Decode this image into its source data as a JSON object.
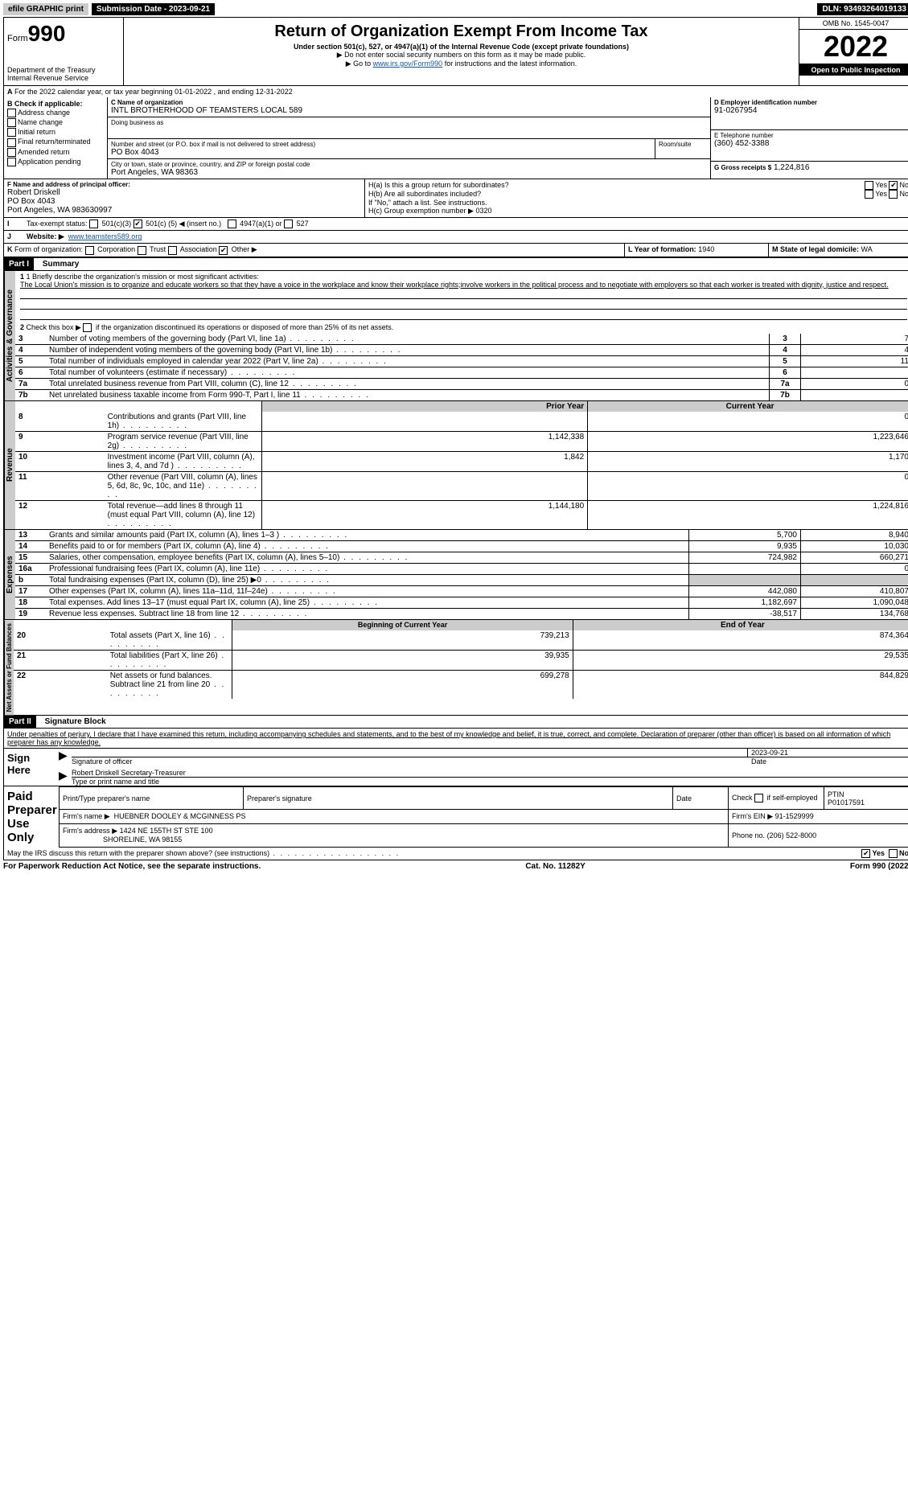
{
  "top": {
    "efile": "efile GRAPHIC print",
    "submission_label": "Submission Date - 2023-09-21",
    "dln": "DLN: 93493264019133"
  },
  "header": {
    "form_prefix": "Form",
    "form_no": "990",
    "dept": "Department of the Treasury",
    "irs": "Internal Revenue Service",
    "title": "Return of Organization Exempt From Income Tax",
    "subtitle": "Under section 501(c), 527, or 4947(a)(1) of the Internal Revenue Code (except private foundations)",
    "note1": "▶ Do not enter social security numbers on this form as it may be made public.",
    "note2_pre": "▶ Go to ",
    "note2_link": "www.irs.gov/Form990",
    "note2_post": " for instructions and the latest information.",
    "omb": "OMB No. 1545-0047",
    "year": "2022",
    "open": "Open to Public Inspection"
  },
  "A": {
    "text": "For the 2022 calendar year, or tax year beginning 01-01-2022    , and ending 12-31-2022"
  },
  "B": {
    "label": "B Check if applicable:",
    "items": [
      "Address change",
      "Name change",
      "Initial return",
      "Final return/terminated",
      "Amended return",
      "Application pending"
    ]
  },
  "C": {
    "name_label": "C Name of organization",
    "name": "INTL BROTHERHOOD OF TEAMSTERS LOCAL 589",
    "dba_label": "Doing business as",
    "dba": "",
    "addr_label": "Number and street (or P.O. box if mail is not delivered to street address)",
    "room_label": "Room/suite",
    "addr": "PO Box 4043",
    "city_label": "City or town, state or province, country, and ZIP or foreign postal code",
    "city": "Port Angeles, WA  98363"
  },
  "D": {
    "label": "D Employer identification number",
    "val": "91-0267954"
  },
  "E": {
    "label": "E Telephone number",
    "val": "(360) 452-3388"
  },
  "G": {
    "label": "G Gross receipts $",
    "val": "1,224,816"
  },
  "F": {
    "label": "F  Name and address of principal officer:",
    "name": "Robert Driskell",
    "addr1": "PO Box 4043",
    "addr2": "Port Angeles, WA  983630997"
  },
  "H": {
    "a": "H(a)  Is this a group return for subordinates?",
    "b": "H(b)  Are all subordinates included?",
    "note": "If \"No,\" attach a list. See instructions.",
    "c_label": "H(c)  Group exemption number ▶",
    "c_val": "0320",
    "yes": "Yes",
    "no": "No"
  },
  "I": {
    "label": "Tax-exempt status:",
    "c3": "501(c)(3)",
    "c_pre": "501(c) (",
    "c_num": "5",
    "c_post": ") ◀ (insert no.)",
    "a1": "4947(a)(1) or",
    "s527": "527"
  },
  "J": {
    "label": "Website: ▶",
    "val": "www.teamsters589.org"
  },
  "K": {
    "label": "Form of organization:",
    "opts": [
      "Corporation",
      "Trust",
      "Association",
      "Other ▶"
    ]
  },
  "L": {
    "label": "L Year of formation:",
    "val": "1940"
  },
  "M": {
    "label": "M State of legal domicile:",
    "val": "WA"
  },
  "partI": {
    "bar": "Part I",
    "title": "Summary",
    "line1_label": "1  Briefly describe the organization's mission or most significant activities:",
    "line1_text": "The Local Union's mission is to organize and educate workers so that they have a voice in the workplace and know their workplace rights;involve workers in the political process and to negotiate with employers so that each worker is treated with dignity, justice and respect.",
    "line2": "Check this box ▶     if the organization discontinued its operations or disposed of more than 25% of its net assets.",
    "rows_ag": [
      {
        "n": "3",
        "t": "Number of voting members of the governing body (Part VI, line 1a)",
        "v": "7"
      },
      {
        "n": "4",
        "t": "Number of independent voting members of the governing body (Part VI, line 1b)",
        "v": "4"
      },
      {
        "n": "5",
        "t": "Total number of individuals employed in calendar year 2022 (Part V, line 2a)",
        "v": "11"
      },
      {
        "n": "6",
        "t": "Total number of volunteers (estimate if necessary)",
        "v": ""
      },
      {
        "n": "7a",
        "t": "Total unrelated business revenue from Part VIII, column (C), line 12",
        "v": "0"
      },
      {
        "n": "7b",
        "t": "Net unrelated business taxable income from Form 990-T, Part I, line 11",
        "v": ""
      }
    ],
    "prior_hdr": "Prior Year",
    "curr_hdr": "Current Year",
    "rows_rev": [
      {
        "n": "8",
        "t": "Contributions and grants (Part VIII, line 1h)",
        "p": "",
        "c": "0"
      },
      {
        "n": "9",
        "t": "Program service revenue (Part VIII, line 2g)",
        "p": "1,142,338",
        "c": "1,223,646"
      },
      {
        "n": "10",
        "t": "Investment income (Part VIII, column (A), lines 3, 4, and 7d )",
        "p": "1,842",
        "c": "1,170"
      },
      {
        "n": "11",
        "t": "Other revenue (Part VIII, column (A), lines 5, 6d, 8c, 9c, 10c, and 11e)",
        "p": "",
        "c": "0"
      },
      {
        "n": "12",
        "t": "Total revenue—add lines 8 through 11 (must equal Part VIII, column (A), line 12)",
        "p": "1,144,180",
        "c": "1,224,816"
      }
    ],
    "rows_exp": [
      {
        "n": "13",
        "t": "Grants and similar amounts paid (Part IX, column (A), lines 1–3 )",
        "p": "5,700",
        "c": "8,940"
      },
      {
        "n": "14",
        "t": "Benefits paid to or for members (Part IX, column (A), line 4)",
        "p": "9,935",
        "c": "10,030"
      },
      {
        "n": "15",
        "t": "Salaries, other compensation, employee benefits (Part IX, column (A), lines 5–10)",
        "p": "724,982",
        "c": "660,271"
      },
      {
        "n": "16a",
        "t": "Professional fundraising fees (Part IX, column (A), line 11e)",
        "p": "",
        "c": "0"
      },
      {
        "n": "b",
        "t": "Total fundraising expenses (Part IX, column (D), line 25) ▶0",
        "p": "__GREY__",
        "c": "__GREY__"
      },
      {
        "n": "17",
        "t": "Other expenses (Part IX, column (A), lines 11a–11d, 11f–24e)",
        "p": "442,080",
        "c": "410,807"
      },
      {
        "n": "18",
        "t": "Total expenses. Add lines 13–17 (must equal Part IX, column (A), line 25)",
        "p": "1,182,697",
        "c": "1,090,048"
      },
      {
        "n": "19",
        "t": "Revenue less expenses. Subtract line 18 from line 12",
        "p": "-38,517",
        "c": "134,768"
      }
    ],
    "beg_hdr": "Beginning of Current Year",
    "end_hdr": "End of Year",
    "rows_net": [
      {
        "n": "20",
        "t": "Total assets (Part X, line 16)",
        "p": "739,213",
        "c": "874,364"
      },
      {
        "n": "21",
        "t": "Total liabilities (Part X, line 26)",
        "p": "39,935",
        "c": "29,535"
      },
      {
        "n": "22",
        "t": "Net assets or fund balances. Subtract line 21 from line 20",
        "p": "699,278",
        "c": "844,829"
      }
    ],
    "tab_ag": "Activities & Governance",
    "tab_rev": "Revenue",
    "tab_exp": "Expenses",
    "tab_net": "Net Assets or Fund Balances"
  },
  "partII": {
    "bar": "Part II",
    "title": "Signature Block",
    "decl": "Under penalties of perjury, I declare that I have examined this return, including accompanying schedules and statements, and to the best of my knowledge and belief, it is true, correct, and complete. Declaration of preparer (other than officer) is based on all information of which preparer has any knowledge.",
    "sign_here": "Sign Here",
    "sig_officer": "Signature of officer",
    "date": "Date",
    "date_val": "2023-09-21",
    "officer_name": "Robert Driskell  Secretary-Treasurer",
    "type_name": "Type or print name and title",
    "paid": "Paid Preparer Use Only",
    "p_name_label": "Print/Type preparer's name",
    "p_sig_label": "Preparer's signature",
    "p_date_label": "Date",
    "p_check": "Check      if self-employed",
    "ptin_label": "PTIN",
    "ptin": "P01017591",
    "firm_name_label": "Firm's name    ▶",
    "firm_name": "HUEBNER DOOLEY & MCGINNESS PS",
    "firm_ein_label": "Firm's EIN ▶",
    "firm_ein": "91-1529999",
    "firm_addr_label": "Firm's address ▶",
    "firm_addr1": "1424 NE 155TH ST STE 100",
    "firm_addr2": "SHORELINE, WA  98155",
    "phone_label": "Phone no.",
    "phone": "(206) 522-8000",
    "may_irs": "May the IRS discuss this return with the preparer shown above? (see instructions)"
  },
  "footer": {
    "left": "For Paperwork Reduction Act Notice, see the separate instructions.",
    "mid": "Cat. No. 11282Y",
    "right": "Form 990 (2022)"
  }
}
